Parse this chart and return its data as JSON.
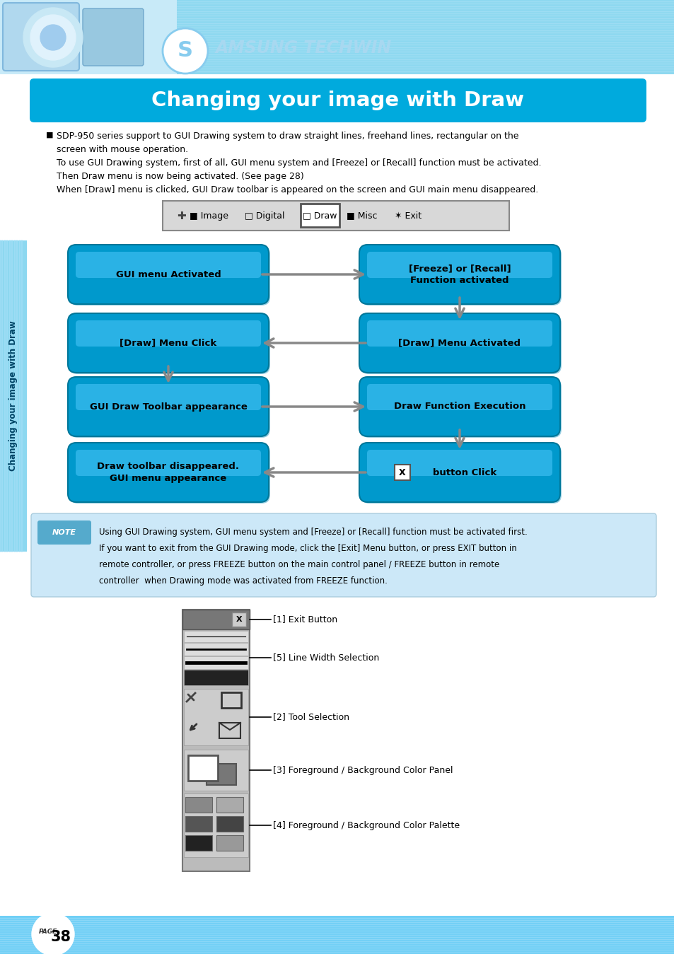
{
  "title": "Changing your image with Draw",
  "bg_color": "#ffffff",
  "header_bg": "#6ecff6",
  "title_bg": "#00aadd",
  "title_color": "#ffffff",
  "body_text_1": "SDP-950 series support to GUI Drawing system to draw straight lines, freehand lines, rectangular on the\nscreen with mouse operation.\nTo use GUI Drawing system, first of all, GUI menu system and [Freeze] or [Recall] function must be activated.\nThen Draw menu is now being activated. (See page 28)\nWhen [Draw] menu is clicked, GUI Draw toolbar is appeared on the screen and GUI main menu disappeared.",
  "flow_boxes_left": [
    "GUI menu Activated",
    "[Draw] Menu Click",
    "GUI Draw Toolbar appearance",
    "Draw toolbar disappeared.\nGUI menu appearance"
  ],
  "flow_boxes_right": [
    "[Freeze] or [Recall]\nFunction activated",
    "[Draw] Menu Activated",
    "Draw Function Execution",
    "   button Click"
  ],
  "note_text": "Using GUI Drawing system, GUI menu system and [Freeze] or [Recall] function must be activated first.\nIf you want to exit from the GUI Drawing mode, click the [Exit] Menu button, or press EXIT button in\nremote controller, or press FREEZE button on the main control panel / FREEZE button in remote\ncontroller  when Drawing mode was activated from FREEZE function.",
  "toolbar_labels": [
    "[1] Exit Button",
    "[5] Line Width Selection",
    "[2] Tool Selection",
    "[3] Foreground / Background Color Panel",
    "[4] Foreground / Background Color Palette"
  ],
  "page_num": "38",
  "sidebar_text": "Changing your image with Draw"
}
